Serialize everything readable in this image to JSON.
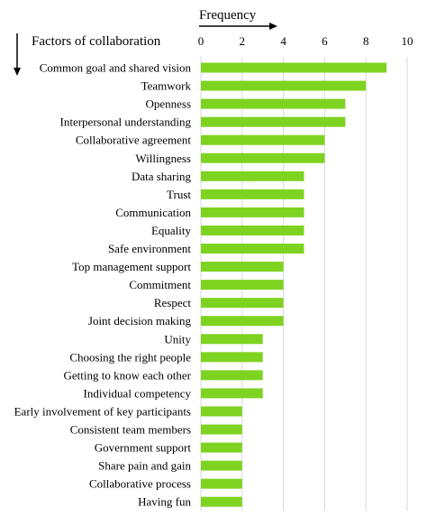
{
  "chart_data": {
    "type": "bar",
    "orientation": "horizontal",
    "categories": [
      "Common goal and shared vision",
      "Teamwork",
      "Openness",
      "Interpersonal understanding",
      "Collaborative agreement",
      "Willingness",
      "Data sharing",
      "Trust",
      "Communication",
      "Equality",
      "Safe environment",
      "Top management support",
      "Commitment",
      "Respect",
      "Joint decision making",
      "Unity",
      "Choosing the right people",
      "Getting to know each other",
      "Individual competency",
      "Early involvement of key participants",
      "Consistent team members",
      "Government support",
      "Share pain and gain",
      "Collaborative process",
      "Having fun"
    ],
    "values": [
      9,
      8,
      7,
      7,
      6,
      6,
      5,
      5,
      5,
      5,
      5,
      4,
      4,
      4,
      4,
      3,
      3,
      3,
      3,
      2,
      2,
      2,
      2,
      2,
      2
    ],
    "xlabel": "Frequency",
    "ylabel": "Factors of collaboration",
    "xlim": [
      0,
      10
    ],
    "xticks": [
      "0",
      "2",
      "4",
      "6",
      "8",
      "10"
    ],
    "x_axis_position": "top",
    "grid": "vertical",
    "bar_color": "#7ed321"
  }
}
